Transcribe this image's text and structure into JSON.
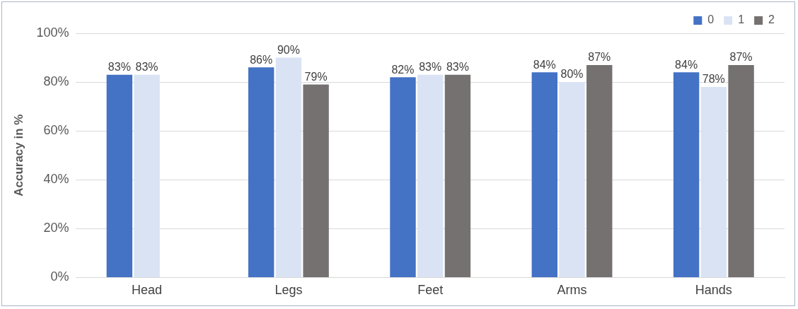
{
  "chart_data": {
    "type": "bar",
    "ylabel": "Accuracy in %",
    "categories": [
      "Head",
      "Legs",
      "Feet",
      "Arms",
      "Hands"
    ],
    "series": [
      {
        "name": "0",
        "color": "#4472c4",
        "values": [
          83,
          86,
          82,
          84,
          84
        ],
        "value_labels": [
          "83%",
          "86%",
          "82%",
          "84%",
          "84%"
        ]
      },
      {
        "name": "1",
        "color": "#dae3f3",
        "values": [
          83,
          90,
          83,
          80,
          78
        ],
        "value_labels": [
          "83%",
          "90%",
          "83%",
          "80%",
          "78%"
        ]
      },
      {
        "name": "2",
        "color": "#767171",
        "values": [
          null,
          79,
          83,
          87,
          87
        ],
        "value_labels": [
          null,
          "79%",
          "83%",
          "87%",
          "87%"
        ]
      }
    ],
    "ylim": [
      0,
      100
    ],
    "yticks": [
      {
        "value": 0,
        "label": "0%"
      },
      {
        "value": 20,
        "label": "20%"
      },
      {
        "value": 40,
        "label": "40%"
      },
      {
        "value": 60,
        "label": "60%"
      },
      {
        "value": 80,
        "label": "80%"
      },
      {
        "value": 100,
        "label": "100%"
      }
    ],
    "grid": "y",
    "legend": "top right"
  }
}
